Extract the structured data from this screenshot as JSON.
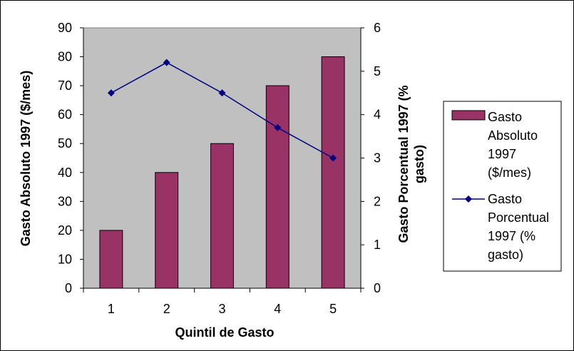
{
  "chart_data": {
    "type": "bar",
    "categories": [
      "1",
      "2",
      "3",
      "4",
      "5"
    ],
    "series": [
      {
        "name": "Gasto Absoluto 1997 ($/mes)",
        "type": "bar",
        "axis": "left",
        "color": "#993366",
        "values": [
          20,
          40,
          50,
          70,
          80
        ]
      },
      {
        "name": "Gasto Porcentual 1997 (% gasto)",
        "type": "line",
        "axis": "right",
        "color": "#000080",
        "marker": "diamond",
        "values": [
          4.5,
          5.2,
          4.5,
          3.7,
          3.0
        ]
      }
    ],
    "title": "",
    "xlabel": "Quintil de Gasto",
    "ylabel": "Gasto Absoluto 1997 ($/mes)",
    "y2label": "Gasto Porcentual 1997 (% gasto)",
    "ylim": [
      0,
      90
    ],
    "y2lim": [
      0,
      6
    ],
    "yticks": [
      "0",
      "10",
      "20",
      "30",
      "40",
      "50",
      "60",
      "70",
      "80",
      "90"
    ],
    "y2ticks": [
      "0",
      "1",
      "2",
      "3",
      "4",
      "5",
      "6"
    ],
    "plot_background": "#c0c0c0",
    "grid": false,
    "legend_position": "right",
    "legend": {
      "bar_lines": [
        "Gasto",
        "Absoluto",
        "1997",
        "($/mes)"
      ],
      "line_lines": [
        "Gasto",
        "Porcentual",
        "1997 (%",
        "gasto)"
      ]
    }
  }
}
